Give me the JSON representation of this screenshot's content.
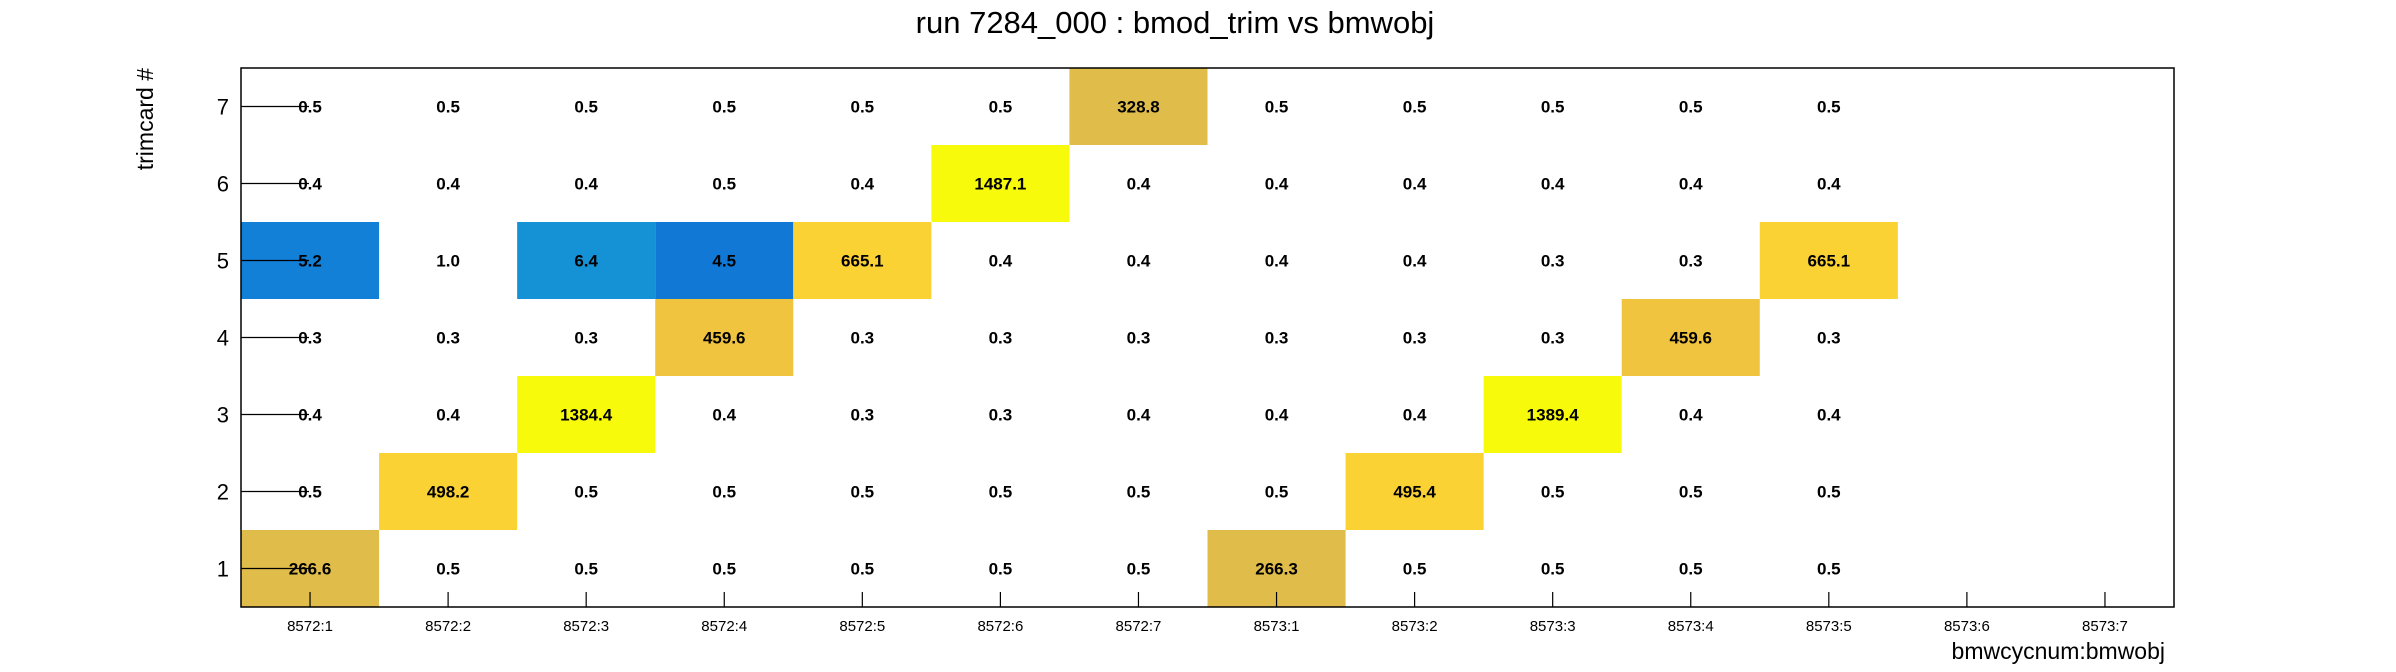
{
  "chart_data": {
    "type": "heatmap",
    "title": "run 7284_000 : bmod_trim vs bmwobj",
    "xlabel": "bmwcycnum:bmwobj",
    "ylabel": "trimcard #",
    "x_categories": [
      "8572:1",
      "8572:2",
      "8572:3",
      "8572:4",
      "8572:5",
      "8572:6",
      "8572:7",
      "8573:1",
      "8573:2",
      "8573:3",
      "8573:4",
      "8573:5",
      "8573:6",
      "8573:7"
    ],
    "y_categories": [
      "1",
      "2",
      "3",
      "4",
      "5",
      "6",
      "7"
    ],
    "grid": false,
    "legend": "none",
    "colors": {
      "low": "#1380d8",
      "mid": "#fbd234",
      "high": "#f8fa0c",
      "tan": "#e0bc4a"
    },
    "rows": [
      {
        "y": "7",
        "values": [
          "0.5",
          "0.5",
          "0.5",
          "0.5",
          "0.5",
          "0.5",
          "328.8",
          "0.5",
          "0.5",
          "0.5",
          "0.5",
          "0.5",
          null,
          null
        ],
        "fills": [
          null,
          null,
          null,
          null,
          null,
          null,
          "#e0bc4a",
          null,
          null,
          null,
          null,
          null,
          null,
          null
        ]
      },
      {
        "y": "6",
        "values": [
          "0.4",
          "0.4",
          "0.4",
          "0.5",
          "0.4",
          "1487.1",
          "0.4",
          "0.4",
          "0.4",
          "0.4",
          "0.4",
          "0.4",
          null,
          null
        ],
        "fills": [
          null,
          null,
          null,
          null,
          null,
          "#f8fa0c",
          null,
          null,
          null,
          null,
          null,
          null,
          null,
          null
        ]
      },
      {
        "y": "5",
        "values": [
          "5.2",
          "1.0",
          "6.4",
          "4.5",
          "665.1",
          "0.4",
          "0.4",
          "0.4",
          "0.4",
          "0.3",
          "0.3",
          "665.1",
          null,
          null
        ],
        "fills": [
          "#1380d8",
          null,
          "#1592d6",
          "#1278d6",
          "#fbd234",
          null,
          null,
          null,
          null,
          null,
          null,
          "#fbd234",
          null,
          null
        ]
      },
      {
        "y": "4",
        "values": [
          "0.3",
          "0.3",
          "0.3",
          "459.6",
          "0.3",
          "0.3",
          "0.3",
          "0.3",
          "0.3",
          "0.3",
          "459.6",
          "0.3",
          null,
          null
        ],
        "fills": [
          null,
          null,
          null,
          "#f1c440",
          null,
          null,
          null,
          null,
          null,
          null,
          "#f1c440",
          null,
          null,
          null
        ]
      },
      {
        "y": "3",
        "values": [
          "0.4",
          "0.4",
          "1384.4",
          "0.4",
          "0.3",
          "0.3",
          "0.4",
          "0.4",
          "0.4",
          "1389.4",
          "0.4",
          "0.4",
          null,
          null
        ],
        "fills": [
          null,
          null,
          "#f8fa0c",
          null,
          null,
          null,
          null,
          null,
          null,
          "#f8fa0c",
          null,
          null,
          null,
          null
        ]
      },
      {
        "y": "2",
        "values": [
          "0.5",
          "498.2",
          "0.5",
          "0.5",
          "0.5",
          "0.5",
          "0.5",
          "0.5",
          "495.4",
          "0.5",
          "0.5",
          "0.5",
          null,
          null
        ],
        "fills": [
          null,
          "#fbd234",
          null,
          null,
          null,
          null,
          null,
          null,
          "#fbd234",
          null,
          null,
          null,
          null,
          null
        ]
      },
      {
        "y": "1",
        "values": [
          "266.6",
          "0.5",
          "0.5",
          "0.5",
          "0.5",
          "0.5",
          "0.5",
          "266.3",
          "0.5",
          "0.5",
          "0.5",
          "0.5",
          null,
          null
        ],
        "fills": [
          "#e0bc4a",
          null,
          null,
          null,
          null,
          null,
          null,
          "#e0bc4a",
          null,
          null,
          null,
          null,
          null,
          null
        ]
      }
    ]
  }
}
